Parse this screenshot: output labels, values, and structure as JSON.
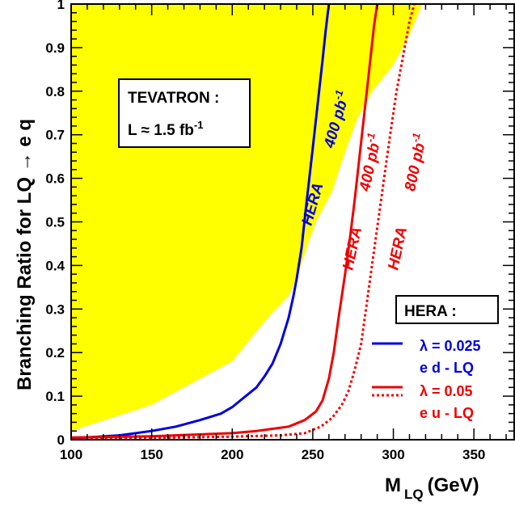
{
  "colors": {
    "background": "#ffffff",
    "excluded_region": "#ffff00",
    "ed_curve": "#0000dd",
    "eu_curve": "#ee0000",
    "axis": "#000000"
  },
  "chart_data": {
    "type": "line",
    "xlabel_main": "M",
    "xlabel_sub": "LQ",
    "xlabel_unit": "(GeV)",
    "ylabel": "Branching Ratio for LQ → e q",
    "xlim": [
      100,
      375
    ],
    "ylim": [
      0,
      1
    ],
    "x_ticks": [
      100,
      150,
      200,
      250,
      300,
      350
    ],
    "x_tick_labels": [
      "100",
      "150",
      "200",
      "250",
      "300",
      "350"
    ],
    "y_ticks": [
      0,
      0.1,
      0.2,
      0.3,
      0.4,
      0.5,
      0.6,
      0.7,
      0.8,
      0.9,
      1
    ],
    "y_tick_labels": [
      "0",
      "0.1",
      "0.2",
      "0.3",
      "0.4",
      "0.5",
      "0.6",
      "0.7",
      "0.8",
      "0.9",
      "1"
    ],
    "grid": false,
    "regions": [
      {
        "label": "TEVATRON excluded region",
        "points": [
          [
            100,
            0.02
          ],
          [
            125,
            0.05
          ],
          [
            150,
            0.08
          ],
          [
            175,
            0.13
          ],
          [
            200,
            0.18
          ],
          [
            222,
            0.28
          ],
          [
            235,
            0.33
          ],
          [
            240,
            0.37
          ],
          [
            248,
            0.46
          ],
          [
            252,
            0.5
          ],
          [
            262,
            0.57
          ],
          [
            270,
            0.66
          ],
          [
            278,
            0.74
          ],
          [
            287,
            0.8
          ],
          [
            300,
            0.86
          ],
          [
            310,
            0.93
          ],
          [
            318,
            1.0
          ],
          [
            100,
            1.0
          ]
        ]
      }
    ],
    "series": [
      {
        "name": "HERA 400 pb-1 e d - LQ",
        "style": "solid",
        "color_key": "ed_curve",
        "x": [
          100,
          130,
          150,
          165,
          180,
          193,
          200,
          205,
          210,
          215,
          220,
          225,
          230,
          235,
          238,
          240,
          243,
          246,
          250,
          253,
          256,
          258,
          260
        ],
        "y": [
          0.003,
          0.01,
          0.02,
          0.03,
          0.045,
          0.06,
          0.075,
          0.09,
          0.105,
          0.12,
          0.145,
          0.175,
          0.22,
          0.28,
          0.33,
          0.37,
          0.44,
          0.54,
          0.67,
          0.77,
          0.87,
          0.94,
          1.0
        ]
      },
      {
        "name": "HERA 400 pb-1 e u - LQ",
        "style": "solid",
        "color_key": "eu_curve",
        "x": [
          100,
          150,
          200,
          215,
          225,
          235,
          245,
          252,
          256,
          260,
          263,
          266,
          270,
          273,
          276,
          279,
          282,
          285,
          288,
          290
        ],
        "y": [
          0.005,
          0.008,
          0.015,
          0.02,
          0.025,
          0.03,
          0.045,
          0.065,
          0.09,
          0.14,
          0.2,
          0.28,
          0.38,
          0.46,
          0.55,
          0.65,
          0.75,
          0.85,
          0.95,
          1.0
        ]
      },
      {
        "name": "HERA 800 pb-1 e u - LQ",
        "style": "dashed",
        "color_key": "eu_curve",
        "x": [
          100,
          150,
          200,
          230,
          245,
          255,
          262,
          268,
          272,
          276,
          280,
          283,
          286,
          289,
          292,
          295,
          298,
          302,
          306,
          310,
          313
        ],
        "y": [
          0.002,
          0.004,
          0.007,
          0.01,
          0.015,
          0.03,
          0.05,
          0.08,
          0.11,
          0.16,
          0.22,
          0.3,
          0.38,
          0.46,
          0.54,
          0.62,
          0.7,
          0.8,
          0.88,
          0.96,
          1.0
        ]
      }
    ],
    "curve_labels": [
      {
        "prefix": "HERA",
        "lumi": "400 pb",
        "exp": "-1",
        "color_key": "ed_curve"
      },
      {
        "prefix": "HERA",
        "lumi": "400 pb",
        "exp": "-1",
        "color_key": "eu_curve"
      },
      {
        "prefix": "HERA",
        "lumi": "800 pb",
        "exp": "-1",
        "color_key": "eu_curve"
      }
    ],
    "tevatron_box": {
      "line1": "TEVATRON :",
      "line2_prefix": "L ≈ 1.5 fb",
      "line2_exp": "-1"
    },
    "legend": {
      "title": "HERA :",
      "placement": "bottom-right",
      "entries": [
        {
          "line1": "λ = 0.025",
          "line2": "e d - LQ",
          "color_key": "ed_curve"
        },
        {
          "line1": "λ = 0.05",
          "line2": "e u - LQ",
          "color_key": "eu_curve"
        }
      ]
    }
  }
}
